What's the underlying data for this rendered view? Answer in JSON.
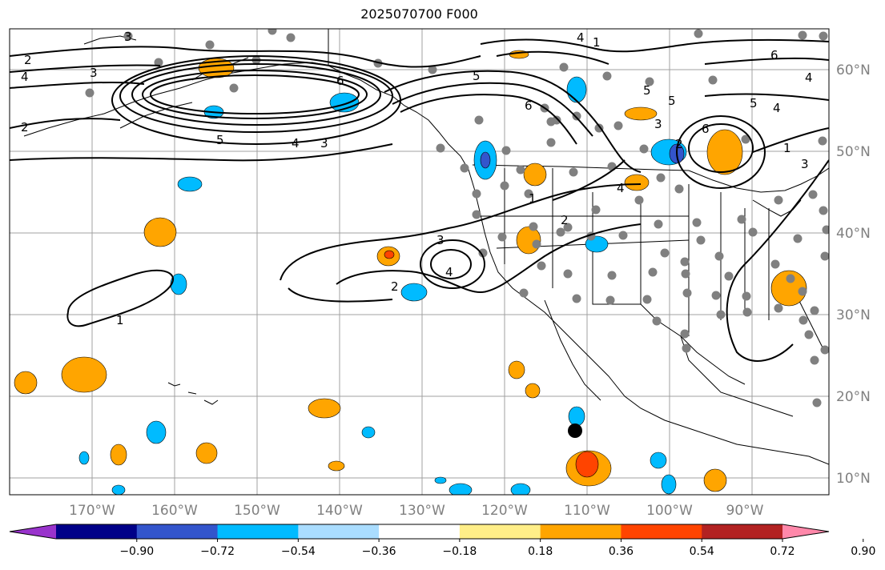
{
  "title": "2025070700 F000",
  "lon_ticks": [
    "170°W",
    "160°W",
    "150°W",
    "140°W",
    "130°W",
    "120°W",
    "110°W",
    "100°W",
    "90°W"
  ],
  "lat_ticks": [
    "60°N",
    "50°N",
    "40°N",
    "30°N",
    "20°N",
    "10°N"
  ],
  "colorbar": {
    "colors": [
      "#9933cc",
      "#000088",
      "#3355cc",
      "#00bbff",
      "#aaddff",
      "#ffffff",
      "#ffee88",
      "#ffa500",
      "#ff4400",
      "#b22222",
      "#ff88aa"
    ],
    "labels": [
      "−0.90",
      "−0.72",
      "−0.54",
      "−0.36",
      "−0.18",
      "0.18",
      "0.36",
      "0.54",
      "0.72",
      "0.90"
    ]
  },
  "contour_labels": [
    "2",
    "3",
    "4",
    "5",
    "6",
    "1",
    "2",
    "3",
    "4",
    "5",
    "6",
    "4",
    "3",
    "5",
    "4",
    "1",
    "2",
    "3",
    "4",
    "2",
    "1",
    "1",
    "6",
    "5",
    "4",
    "3",
    "2",
    "4",
    "6",
    "5",
    "3"
  ]
}
